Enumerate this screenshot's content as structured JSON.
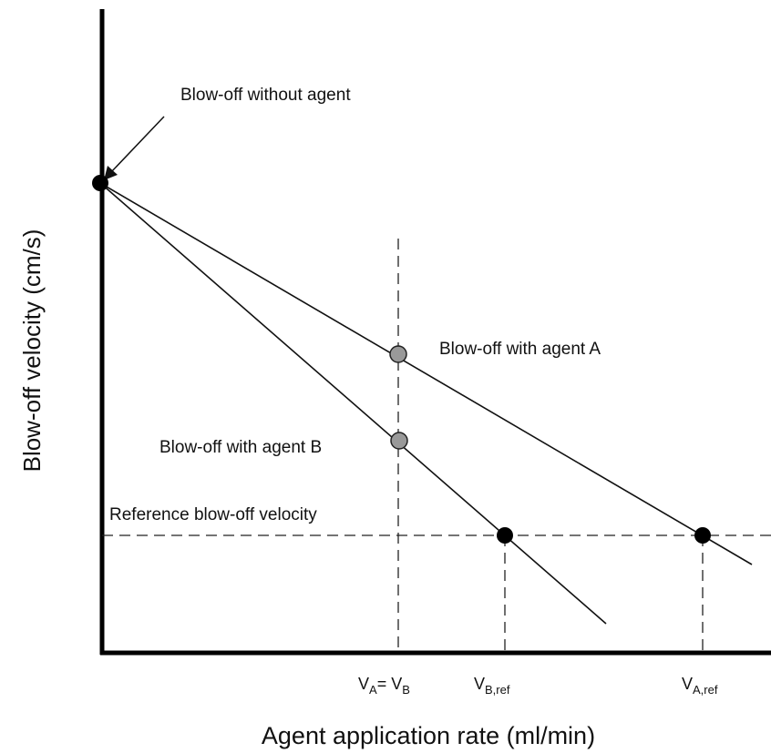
{
  "labels": {
    "y_axis": "Blow-off velocity (cm/s)",
    "x_axis": "Agent application rate (ml/min)",
    "no_agent": "Blow-off without agent",
    "agent_a": "Blow-off with agent A",
    "agent_b": "Blow-off with agent B",
    "reference": "Reference blow-off velocity"
  },
  "ticks": [
    [
      "V",
      "A",
      "= V",
      "B"
    ],
    [
      "V",
      "B,ref"
    ],
    [
      "V",
      "A,ref"
    ]
  ]
}
